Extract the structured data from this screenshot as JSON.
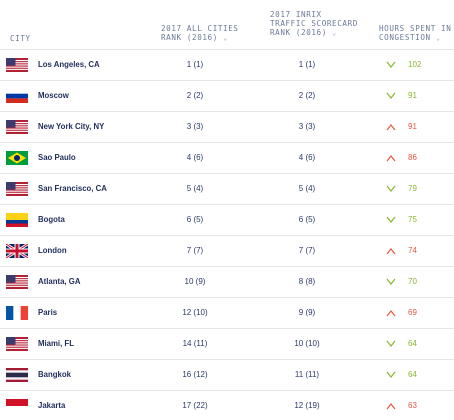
{
  "header": {
    "city": "CITY",
    "all_cities_rank": "2017 ALL CITIES RANK (2016)",
    "inrix_rank": "2017 INRIX TRAFFIC SCORECARD RANK (2016)",
    "hours": "HOURS SPENT IN CONGESTION",
    "sort_icon": "chevron-down-icon"
  },
  "colors": {
    "decrease": "#8ab52e",
    "increase": "#e8573f",
    "text": "#1f2d5c",
    "header_text": "#6b7a99"
  },
  "rows": [
    {
      "city": "Los Angeles, CA",
      "flag": "usa-flag-icon",
      "all_rank": "1 (1)",
      "inrix_rank": "1 (1)",
      "trend": "down",
      "hours": "102"
    },
    {
      "city": "Moscow",
      "flag": "russia-flag-icon",
      "all_rank": "2 (2)",
      "inrix_rank": "2 (2)",
      "trend": "down",
      "hours": "91"
    },
    {
      "city": "New York City, NY",
      "flag": "usa-flag-icon",
      "all_rank": "3 (3)",
      "inrix_rank": "3 (3)",
      "trend": "up",
      "hours": "91"
    },
    {
      "city": "Sao Paulo",
      "flag": "brazil-flag-icon",
      "all_rank": "4 (6)",
      "inrix_rank": "4 (6)",
      "trend": "up",
      "hours": "86"
    },
    {
      "city": "San Francisco, CA",
      "flag": "usa-flag-icon",
      "all_rank": "5 (4)",
      "inrix_rank": "5 (4)",
      "trend": "down",
      "hours": "79"
    },
    {
      "city": "Bogota",
      "flag": "colombia-flag-icon",
      "all_rank": "6 (5)",
      "inrix_rank": "6 (5)",
      "trend": "down",
      "hours": "75"
    },
    {
      "city": "London",
      "flag": "uk-flag-icon",
      "all_rank": "7 (7)",
      "inrix_rank": "7 (7)",
      "trend": "up",
      "hours": "74"
    },
    {
      "city": "Atlanta, GA",
      "flag": "usa-flag-icon",
      "all_rank": "10 (9)",
      "inrix_rank": "8 (8)",
      "trend": "down",
      "hours": "70"
    },
    {
      "city": "Paris",
      "flag": "france-flag-icon",
      "all_rank": "12 (10)",
      "inrix_rank": "9 (9)",
      "trend": "up",
      "hours": "69"
    },
    {
      "city": "Miami, FL",
      "flag": "usa-flag-icon",
      "all_rank": "14 (11)",
      "inrix_rank": "10 (10)",
      "trend": "down",
      "hours": "64"
    },
    {
      "city": "Bangkok",
      "flag": "thailand-flag-icon",
      "all_rank": "16 (12)",
      "inrix_rank": "11 (11)",
      "trend": "down",
      "hours": "64"
    },
    {
      "city": "Jakarta",
      "flag": "indonesia-flag-icon",
      "all_rank": "17 (22)",
      "inrix_rank": "12 (19)",
      "trend": "up",
      "hours": "63"
    }
  ]
}
